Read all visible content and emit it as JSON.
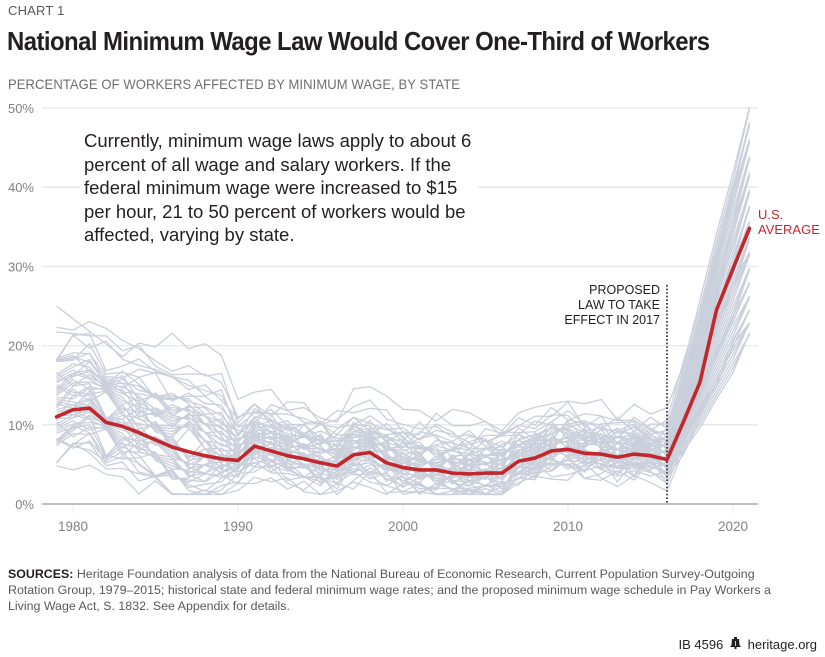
{
  "header": {
    "kicker": "CHART 1",
    "title": "National Minimum Wage Law Would Cover One-Third of Workers",
    "subtitle": "PERCENTAGE OF WORKERS AFFECTED BY MINIMUM WAGE, BY STATE"
  },
  "annotations": {
    "summary": "Currently, minimum wage laws apply to about 6 percent of all wage and salary workers. If the federal minimum wage were increased to $15 per hour, 21 to 50 percent of workers would be affected, varying by state.",
    "proposed_law": [
      "PROPOSED",
      "LAW TO TAKE",
      "EFFECT IN 2017"
    ],
    "proposed_law_year": 2016,
    "us_average_label": [
      "U.S.",
      "AVERAGE"
    ]
  },
  "colors": {
    "average": "#c1272d",
    "states": "#c9cfdb",
    "grid": "#e6e7e8",
    "axis": "#a7a9ac",
    "tick_text": "#808285"
  },
  "footer": {
    "sources_label": "SOURCES:",
    "sources_text": "Heritage Foundation analysis of data from the National Bureau of Economic Research, Current Population Survey-Outgoing Rotation Group, 1979–2015; historical state and federal minimum wage rates; and the proposed minimum wage schedule in Pay Workers a Living Wage Act, S. 1832. See Appendix for details.",
    "id": "IB 4596",
    "bell_icon": "liberty-bell-icon",
    "site": "heritage.org"
  },
  "chart_data": {
    "type": "line",
    "title": "National Minimum Wage Law Would Cover One-Third of Workers",
    "subtitle": "PERCENTAGE OF WORKERS AFFECTED BY MINIMUM WAGE, BY STATE",
    "xlabel": "",
    "ylabel": "",
    "xlim": [
      1978.5,
      2022
    ],
    "ylim": [
      0,
      50
    ],
    "x_ticks": [
      1980,
      1990,
      2000,
      2010,
      2020
    ],
    "x_tick_labels": [
      "1980",
      "1990",
      "2000",
      "2010",
      "2020"
    ],
    "y_ticks": [
      0,
      10,
      20,
      30,
      40,
      50
    ],
    "y_tick_labels": [
      "0%",
      "10%",
      "20%",
      "30%",
      "40%",
      "50%"
    ],
    "grid": "horizontal",
    "legend": "none (direct label at right)",
    "x": [
      1979,
      1980,
      1981,
      1982,
      1983,
      1984,
      1985,
      1986,
      1987,
      1988,
      1989,
      1990,
      1991,
      1992,
      1993,
      1994,
      1995,
      1996,
      1997,
      1998,
      1999,
      2000,
      2001,
      2002,
      2003,
      2004,
      2005,
      2006,
      2007,
      2008,
      2009,
      2010,
      2011,
      2012,
      2013,
      2014,
      2015,
      2016,
      2017,
      2018,
      2019,
      2020,
      2021
    ],
    "average": {
      "name": "U.S. AVERAGE",
      "values": [
        11.0,
        11.9,
        12.1,
        10.3,
        9.8,
        9.0,
        8.1,
        7.2,
        6.6,
        6.1,
        5.7,
        5.5,
        7.3,
        6.7,
        6.1,
        5.7,
        5.2,
        4.8,
        6.2,
        6.5,
        5.2,
        4.6,
        4.3,
        4.3,
        3.9,
        3.8,
        3.9,
        3.9,
        5.4,
        5.8,
        6.7,
        6.9,
        6.4,
        6.3,
        5.9,
        6.3,
        6.1,
        5.6,
        10.4,
        15.4,
        24.5,
        29.7,
        34.8
      ]
    },
    "state_offsets": [
      -7.5,
      -6.5,
      -5.8,
      -5.2,
      -4.7,
      -4.2,
      -3.8,
      -3.4,
      -3.0,
      -2.7,
      -2.4,
      -2.1,
      -1.8,
      -1.5,
      -1.2,
      -0.9,
      -0.6,
      -0.3,
      0.0,
      0.3,
      0.6,
      0.9,
      1.2,
      1.5,
      1.8,
      2.1,
      2.4,
      2.7,
      3.0,
      3.3,
      3.6,
      3.9,
      4.2,
      4.5,
      4.8,
      5.1,
      5.4,
      5.7,
      6.0,
      6.4,
      6.8,
      7.2,
      7.7,
      8.2,
      8.8,
      9.5,
      10.3,
      11.3,
      12.6,
      15.2
    ],
    "state_count": 50,
    "state_range_2021": [
      21,
      50
    ],
    "state_max_1979": 25
  }
}
